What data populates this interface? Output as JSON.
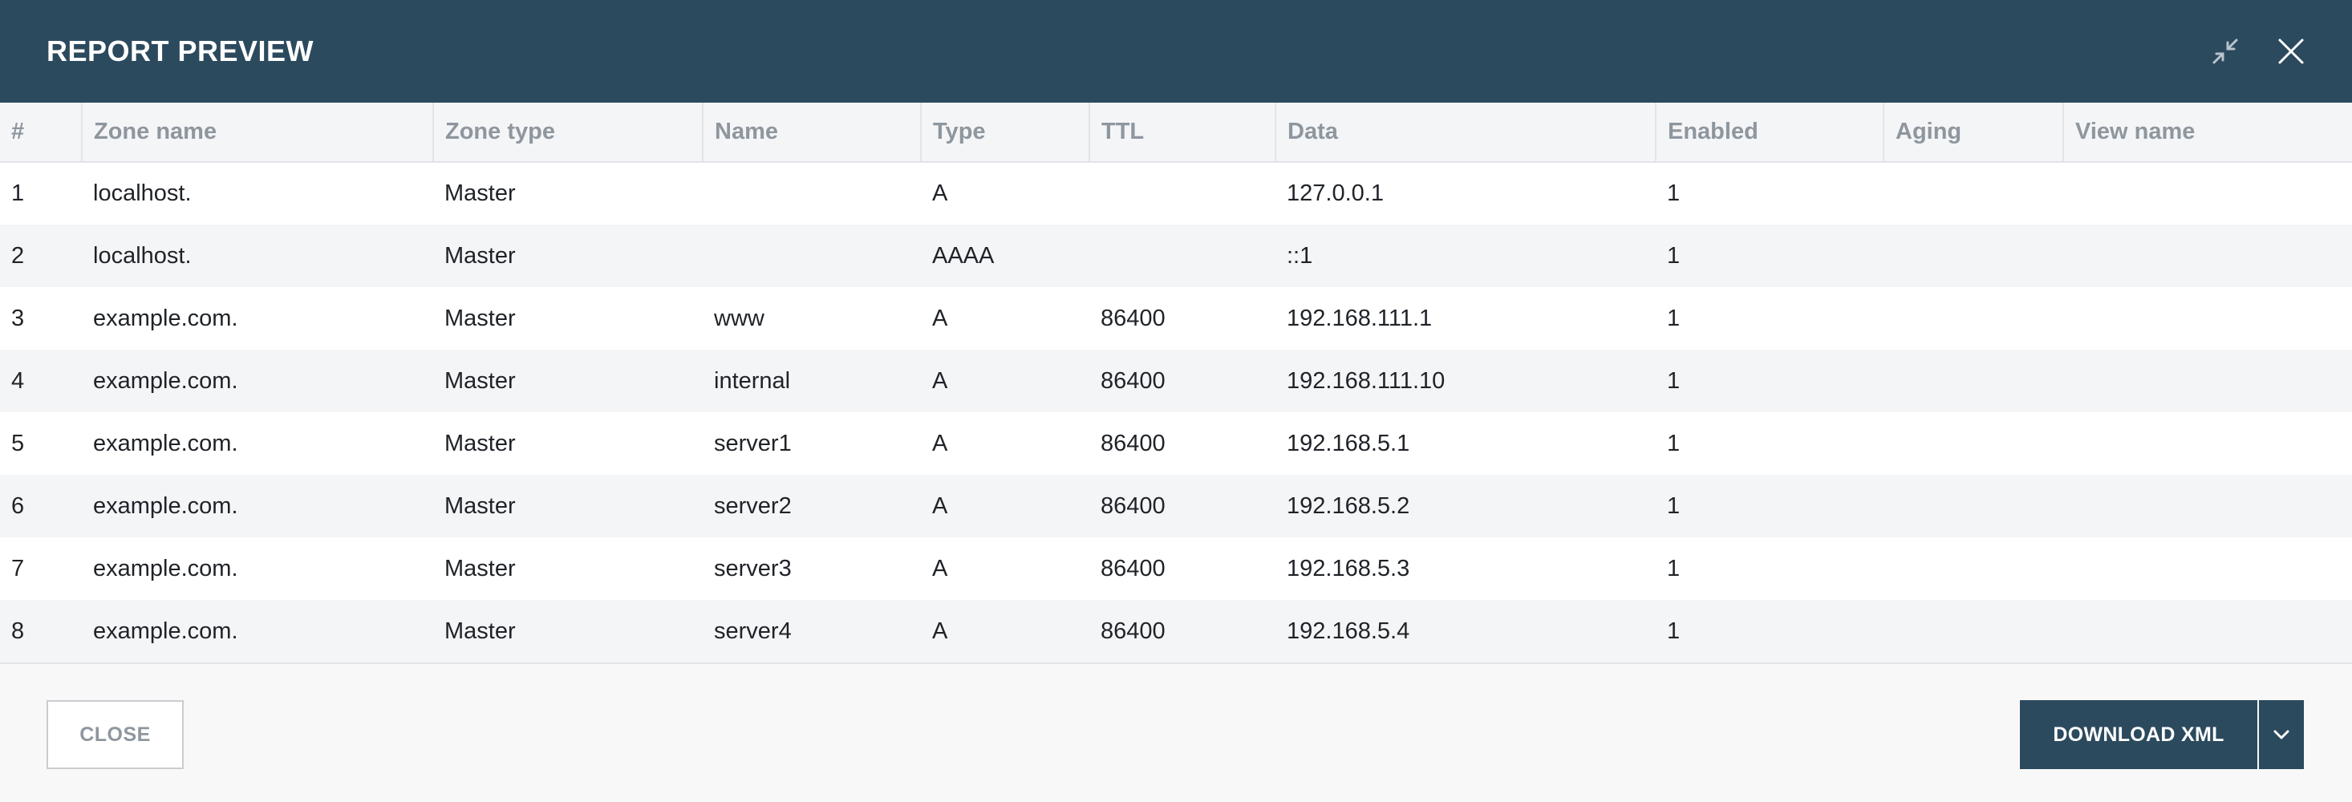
{
  "dialog": {
    "title": "REPORT PREVIEW",
    "header_icons": [
      "collapse-icon",
      "close-icon"
    ]
  },
  "table": {
    "columns": [
      "#",
      "Zone name",
      "Zone type",
      "Name",
      "Type",
      "TTL",
      "Data",
      "Enabled",
      "Aging",
      "View name"
    ],
    "rows": [
      [
        "1",
        "localhost.",
        "Master",
        "",
        "A",
        "",
        "127.0.0.1",
        "1",
        "",
        ""
      ],
      [
        "2",
        "localhost.",
        "Master",
        "",
        "AAAA",
        "",
        "::1",
        "1",
        "",
        ""
      ],
      [
        "3",
        "example.com.",
        "Master",
        "www",
        "A",
        "86400",
        "192.168.111.1",
        "1",
        "",
        ""
      ],
      [
        "4",
        "example.com.",
        "Master",
        "internal",
        "A",
        "86400",
        "192.168.111.10",
        "1",
        "",
        ""
      ],
      [
        "5",
        "example.com.",
        "Master",
        "server1",
        "A",
        "86400",
        "192.168.5.1",
        "1",
        "",
        ""
      ],
      [
        "6",
        "example.com.",
        "Master",
        "server2",
        "A",
        "86400",
        "192.168.5.2",
        "1",
        "",
        ""
      ],
      [
        "7",
        "example.com.",
        "Master",
        "server3",
        "A",
        "86400",
        "192.168.5.3",
        "1",
        "",
        ""
      ],
      [
        "8",
        "example.com.",
        "Master",
        "server4",
        "A",
        "86400",
        "192.168.5.4",
        "1",
        "",
        ""
      ]
    ]
  },
  "footer": {
    "close_label": "CLOSE",
    "download_label": "DOWNLOAD XML",
    "dropdown_icon": "chevron-down-icon"
  },
  "colors": {
    "header_bg": "#2c4a5e",
    "header_text": "#ffffff",
    "column_header_text": "#8e969e",
    "row_alt_bg": "#f4f5f7",
    "primary_button_bg": "#2c4a5e"
  }
}
